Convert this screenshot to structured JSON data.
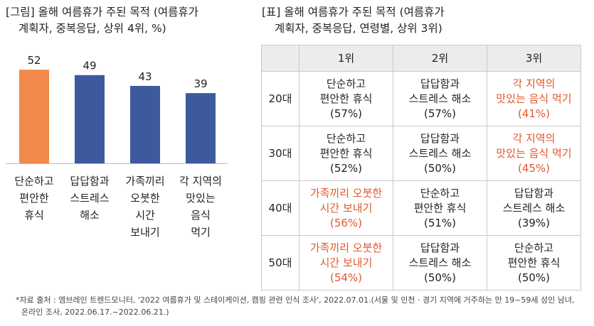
{
  "left_title": {
    "line1": "[그림] 올해 여름휴가 주된 목적 (여름휴가",
    "line2": "계획자, 중복응답, 상위 4위, %)"
  },
  "chart_data": {
    "type": "bar",
    "categories": [
      [
        "단순하고",
        "편안한",
        "휴식"
      ],
      [
        "답답함과",
        "스트레스",
        "해소"
      ],
      [
        "가족끼리",
        "오붓한",
        "시간",
        "보내기"
      ],
      [
        "각 지역의",
        "맛있는",
        "음식",
        "먹기"
      ]
    ],
    "values": [
      52,
      49,
      43,
      39
    ],
    "colors": [
      "#f0894a",
      "#3e5a9e",
      "#3e5a9e",
      "#3e5a9e"
    ],
    "ylim": [
      0,
      60
    ],
    "title": "",
    "xlabel": "",
    "ylabel": ""
  },
  "right_title": {
    "line1": "[표] 올해 여름휴가 주된 목적 (여름휴가",
    "line2": "계획자, 중복응답, 연령별, 상위 3위)"
  },
  "table": {
    "headers": [
      "1위",
      "2위",
      "3위"
    ],
    "rows": [
      {
        "age": "20대",
        "cells": [
          {
            "lines": [
              "단순하고",
              "편안한 휴식",
              "(57%)"
            ],
            "highlight": false
          },
          {
            "lines": [
              "답답함과",
              "스트레스 해소",
              "(57%)"
            ],
            "highlight": false
          },
          {
            "lines": [
              "각 지역의",
              "맛있는 음식 먹기",
              "(41%)"
            ],
            "highlight": true
          }
        ]
      },
      {
        "age": "30대",
        "cells": [
          {
            "lines": [
              "단순하고",
              "편안한 휴식",
              "(52%)"
            ],
            "highlight": false
          },
          {
            "lines": [
              "답답함과",
              "스트레스 해소",
              "(50%)"
            ],
            "highlight": false
          },
          {
            "lines": [
              "각 지역의",
              "맛있는 음식 먹기",
              "(45%)"
            ],
            "highlight": true
          }
        ]
      },
      {
        "age": "40대",
        "cells": [
          {
            "lines": [
              "가족끼리 오붓한",
              "시간 보내기",
              "(56%)"
            ],
            "highlight": true
          },
          {
            "lines": [
              "단순하고",
              "편안한 휴식",
              "(51%)"
            ],
            "highlight": false
          },
          {
            "lines": [
              "답답함과",
              "스트레스 해소",
              "(39%)"
            ],
            "highlight": false
          }
        ]
      },
      {
        "age": "50대",
        "cells": [
          {
            "lines": [
              "가족끼리 오붓한",
              "시간 보내기",
              "(54%)"
            ],
            "highlight": true
          },
          {
            "lines": [
              "답답함과",
              "스트레스 해소",
              "(50%)"
            ],
            "highlight": false
          },
          {
            "lines": [
              "단순하고",
              "편안한 휴식",
              "(50%)"
            ],
            "highlight": false
          }
        ]
      }
    ]
  },
  "footnote": {
    "line1": "*자료 출처 : 엠브레인 트렌드모니터, '2022 여름휴가 및 스테이케이션, 캠핑 관련 인식 조사', 2022.07.01.(서울 및 인천 · 경기 지역에 거주하는 만 19~59세 성인 남녀,",
    "line2": "온라인 조사, 2022.06.17.~2022.06.21.)"
  }
}
